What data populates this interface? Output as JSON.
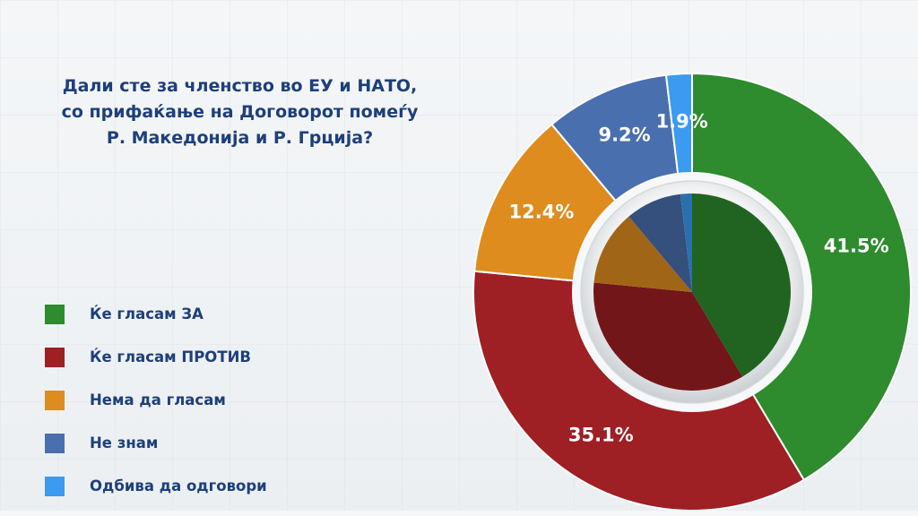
{
  "chart_data": {
    "type": "pie",
    "title": "Дали сте за членство во ЕУ и НАТО, со прифаќање на Договорот помеѓу Р. Македонија и Р. Грција?",
    "title_lines": [
      "Дали сте за членство во ЕУ и НАТО,",
      "со прифаќање на Договорот помеѓу",
      "Р. Македонија и Р. Грција?"
    ],
    "categories": [
      "Ќе гласам ЗА",
      "Ќе гласам ПРОТИВ",
      "Нема да гласам",
      "Не знам",
      "Одбива да одговори"
    ],
    "values": [
      41.5,
      35.1,
      12.4,
      9.2,
      1.9
    ],
    "value_labels": [
      "41.5%",
      "35.1%",
      "12.4%",
      "9.2%",
      "1.9%"
    ],
    "colors": [
      "#2e8b2e",
      "#9e1f24",
      "#de8c1e",
      "#4a6fae",
      "#3c9af0"
    ],
    "legend_position": "left"
  }
}
